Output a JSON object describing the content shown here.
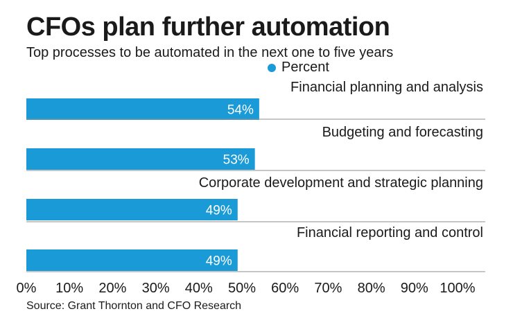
{
  "title": "CFOs plan further automation",
  "subtitle": "Top processes to be automated in the next one to five years",
  "legend_label": "Percent",
  "source": "Source: Grant Thornton and CFO Research",
  "colors": {
    "bar": "#1a9bd7",
    "text": "#1a1a1a",
    "rule": "#8c8c8c"
  },
  "chart_data": {
    "type": "bar",
    "orientation": "horizontal",
    "categories": [
      "Financial planning and analysis",
      "Budgeting and forecasting",
      "Corporate development and strategic planning",
      "Financial reporting and control"
    ],
    "series": [
      {
        "name": "Percent",
        "values": [
          54,
          53,
          49,
          49
        ]
      }
    ],
    "value_labels": [
      "54%",
      "53%",
      "49%",
      "49%"
    ],
    "xlim": [
      0,
      100
    ],
    "x_ticks": [
      0,
      10,
      20,
      30,
      40,
      50,
      60,
      70,
      80,
      90,
      100
    ],
    "x_tick_labels": [
      "0%",
      "10%",
      "20%",
      "30%",
      "40%",
      "50%",
      "60%",
      "70%",
      "80%",
      "90%",
      "100%"
    ],
    "grid": false,
    "legend_position": "top"
  }
}
